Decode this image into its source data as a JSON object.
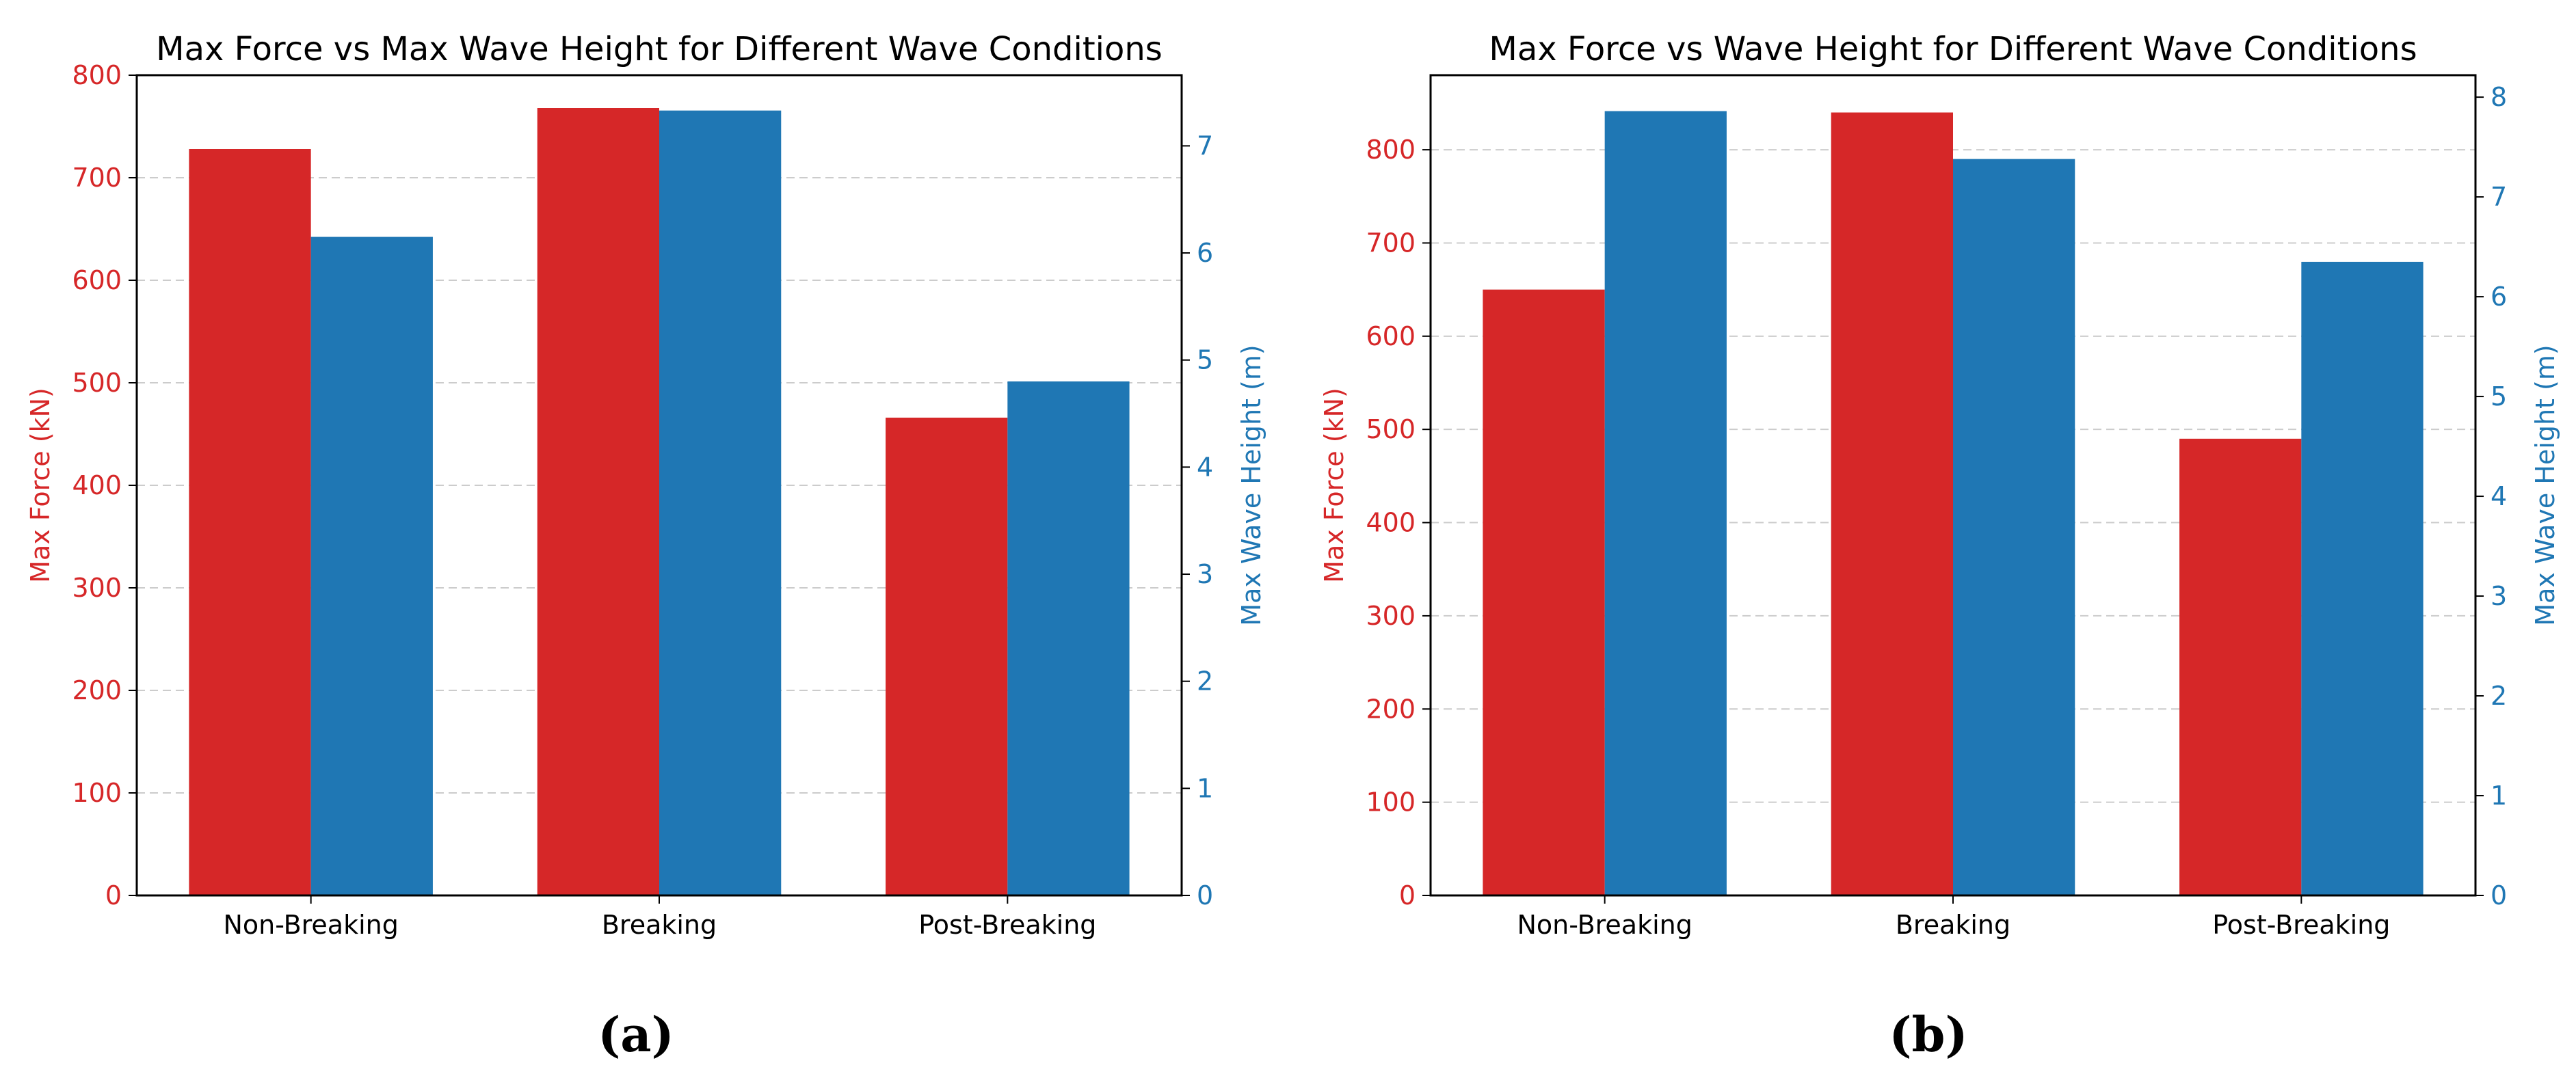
{
  "colors": {
    "force": "#d62728",
    "wave": "#1f77b4",
    "grid": "#cccccc",
    "axis": "#000000",
    "text": "#000000"
  },
  "chart_data": [
    {
      "type": "bar",
      "panel_label": "(a)",
      "title": "Max Force vs Max Wave Height for Different Wave Conditions",
      "categories": [
        "Non-Breaking",
        "Breaking",
        "Post-Breaking"
      ],
      "ylabel": "Max Force (kN)",
      "y2label": "Max Wave Height (m)",
      "ylim": [
        0,
        800
      ],
      "y2lim": [
        0,
        7.66
      ],
      "yticks": [
        0,
        100,
        200,
        300,
        400,
        500,
        600,
        700,
        800
      ],
      "y2ticks": [
        0,
        1,
        2,
        3,
        4,
        5,
        6,
        7
      ],
      "grid": true,
      "series": [
        {
          "name": "Max Force (kN)",
          "axis": "left",
          "color": "#d62728",
          "values": [
            728,
            768,
            466
          ]
        },
        {
          "name": "Max Wave Height (m)",
          "axis": "right",
          "color": "#1f77b4",
          "values": [
            6.15,
            7.33,
            4.8
          ]
        }
      ]
    },
    {
      "type": "bar",
      "panel_label": "(b)",
      "title": "Max Force vs Wave Height for Different Wave Conditions",
      "categories": [
        "Non-Breaking",
        "Breaking",
        "Post-Breaking"
      ],
      "ylabel": "Max Force (kN)",
      "y2label": "Max Wave Height (m)",
      "ylim": [
        0,
        880
      ],
      "y2lim": [
        0,
        8.22
      ],
      "yticks": [
        0,
        100,
        200,
        300,
        400,
        500,
        600,
        700,
        800
      ],
      "y2ticks": [
        0,
        1,
        2,
        3,
        4,
        5,
        6,
        7,
        8
      ],
      "grid": true,
      "series": [
        {
          "name": "Max Force (kN)",
          "axis": "left",
          "color": "#d62728",
          "values": [
            650,
            840,
            490
          ]
        },
        {
          "name": "Max Wave Height (m)",
          "axis": "right",
          "color": "#1f77b4",
          "values": [
            7.86,
            7.38,
            6.35
          ]
        }
      ]
    }
  ]
}
